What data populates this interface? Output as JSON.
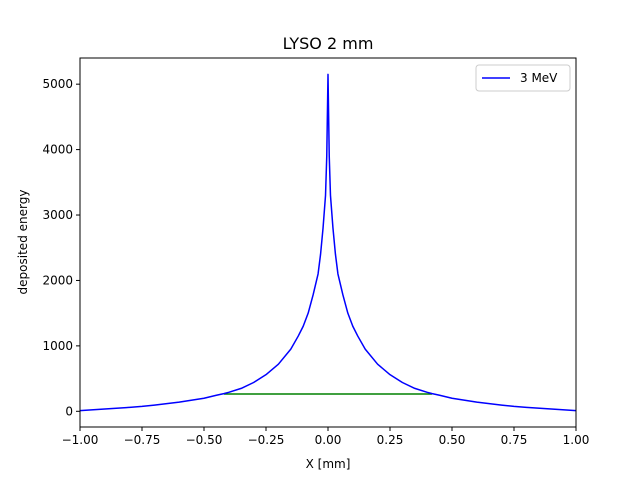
{
  "chart_data": {
    "type": "line",
    "title": "LYSO 2 mm",
    "xlabel": "X [mm]",
    "ylabel": "deposited energy",
    "xlim": [
      -1.0,
      1.0
    ],
    "ylim": [
      -240,
      5400
    ],
    "xticks": [
      -1.0,
      -0.75,
      -0.5,
      -0.25,
      0.0,
      0.25,
      0.5,
      0.75,
      1.0
    ],
    "xtick_labels": [
      "−1.00",
      "−0.75",
      "−0.50",
      "−0.25",
      "0.00",
      "0.25",
      "0.50",
      "0.75",
      "1.00"
    ],
    "yticks": [
      0,
      1000,
      2000,
      3000,
      4000,
      5000
    ],
    "ytick_labels": [
      "0",
      "1000",
      "2000",
      "3000",
      "4000",
      "5000"
    ],
    "grid": false,
    "legend_position": "upper right",
    "series": [
      {
        "name": "3 MeV",
        "color": "#0000ff",
        "x": [
          -1.0,
          -0.9,
          -0.8,
          -0.75,
          -0.7,
          -0.6,
          -0.5,
          -0.45,
          -0.42,
          -0.4,
          -0.35,
          -0.3,
          -0.25,
          -0.2,
          -0.15,
          -0.12,
          -0.1,
          -0.08,
          -0.06,
          -0.04,
          -0.03,
          -0.02,
          -0.01,
          -0.005,
          0.0,
          0.005,
          0.01,
          0.02,
          0.03,
          0.04,
          0.06,
          0.08,
          0.1,
          0.12,
          0.15,
          0.2,
          0.25,
          0.3,
          0.35,
          0.4,
          0.42,
          0.45,
          0.5,
          0.6,
          0.7,
          0.75,
          0.8,
          0.9,
          1.0
        ],
        "y": [
          10,
          35,
          60,
          75,
          95,
          140,
          200,
          245,
          270,
          290,
          350,
          440,
          560,
          720,
          950,
          1150,
          1300,
          1500,
          1780,
          2100,
          2400,
          2800,
          3300,
          3900,
          5150,
          3900,
          3300,
          2800,
          2400,
          2100,
          1780,
          1500,
          1300,
          1150,
          950,
          720,
          560,
          440,
          350,
          290,
          270,
          245,
          200,
          140,
          95,
          75,
          60,
          35,
          10
        ]
      }
    ],
    "hline": {
      "color": "#008000",
      "y": 265,
      "x_start": -0.42,
      "x_end": 0.42
    }
  }
}
